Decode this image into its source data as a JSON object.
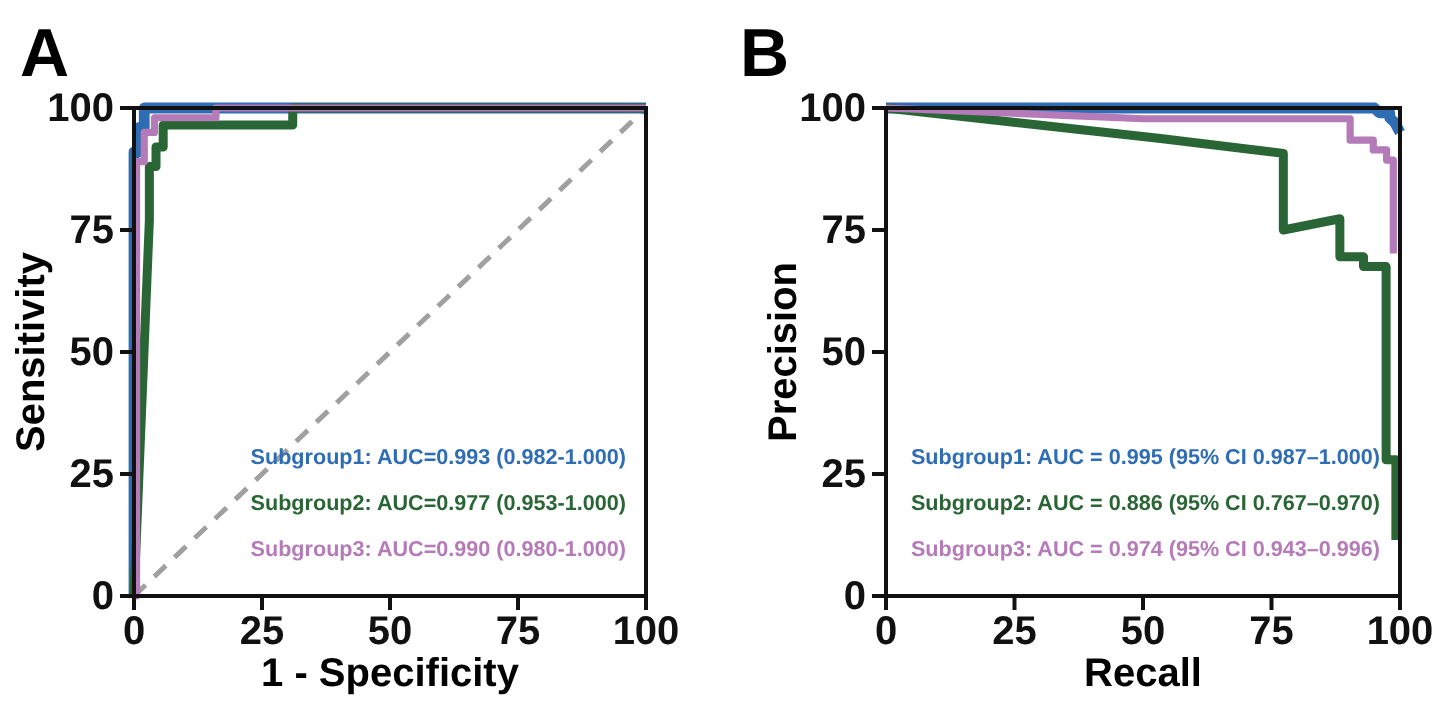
{
  "chart_data": [
    {
      "type": "line",
      "title": "A",
      "xlabel": "1 - Specificity",
      "ylabel": "Sensitivity",
      "xlim": [
        0,
        100
      ],
      "ylim": [
        0,
        100
      ],
      "xticks": [
        0,
        25,
        50,
        75,
        100
      ],
      "yticks": [
        0,
        25,
        50,
        75,
        100
      ],
      "grid": false,
      "legend": "bottom right",
      "line_style": "solid",
      "marker": "none",
      "series": [
        {
          "name": "Subgroup1: AUC=0.993 (0.982-1.000)",
          "color": "#2e6db4",
          "x": [
            0,
            0,
            1,
            1,
            2,
            2,
            100
          ],
          "values": [
            0,
            91,
            91,
            96,
            96,
            100,
            100
          ]
        },
        {
          "name": "Subgroup2: AUC=0.977 (0.953-1.000)",
          "color": "#2a6535",
          "x": [
            0,
            3,
            3,
            4.3,
            4.3,
            5.7,
            5.7,
            31,
            31,
            100
          ],
          "values": [
            0,
            77,
            88,
            88,
            92,
            92,
            96.5,
            96.5,
            100,
            100
          ]
        },
        {
          "name": "Subgroup3: AUC=0.990 (0.980-1.000)",
          "color": "#b57ab8",
          "x": [
            0,
            0.5,
            0.5,
            2,
            2,
            4,
            4,
            16,
            16,
            100
          ],
          "values": [
            0,
            0,
            89,
            89,
            95,
            95,
            98,
            98,
            100,
            100
          ]
        },
        {
          "color": "#a0a0a0",
          "line_style": "dashed",
          "x": [
            0,
            100
          ],
          "values": [
            0,
            100
          ]
        }
      ]
    },
    {
      "type": "line",
      "title": "B",
      "xlabel": "Recall",
      "ylabel": "Precision",
      "xlim": [
        0,
        100
      ],
      "ylim": [
        0,
        100
      ],
      "xticks": [
        0,
        25,
        50,
        75,
        100
      ],
      "yticks": [
        0,
        25,
        50,
        75,
        100
      ],
      "grid": false,
      "legend": "bottom right",
      "line_style": "solid",
      "marker": "none",
      "series": [
        {
          "name": "Subgroup1: AUC = 0.995 (95% CI 0.987–1.000)",
          "color": "#2e6db4",
          "x": [
            0,
            95,
            96,
            98,
            98,
            99,
            100
          ],
          "values": [
            100,
            100,
            99,
            99,
            98,
            97,
            95
          ]
        },
        {
          "name": "Subgroup2: AUC = 0.886 (95% CI 0.767–0.970)",
          "color": "#2a6535",
          "x": [
            0,
            53,
            77.3,
            77.3,
            88.3,
            88.3,
            92.9,
            92.9,
            97.3,
            97.3,
            99.2,
            99.2
          ],
          "values": [
            100,
            93.8,
            90.7,
            75,
            77.3,
            69.5,
            69.5,
            67.5,
            67.5,
            27.9,
            27.9,
            11.5
          ]
        },
        {
          "name": "Subgroup3: AUC = 0.974 (95% CI 0.943–0.996)",
          "color": "#b57ab8",
          "x": [
            0,
            50,
            90.3,
            90.3,
            94.8,
            94.8,
            97.4,
            97.4,
            98.7,
            98.7
          ],
          "values": [
            100,
            97.8,
            97.8,
            93.4,
            93.4,
            91.4,
            91.4,
            89.3,
            89.3,
            70.2
          ]
        }
      ]
    }
  ]
}
